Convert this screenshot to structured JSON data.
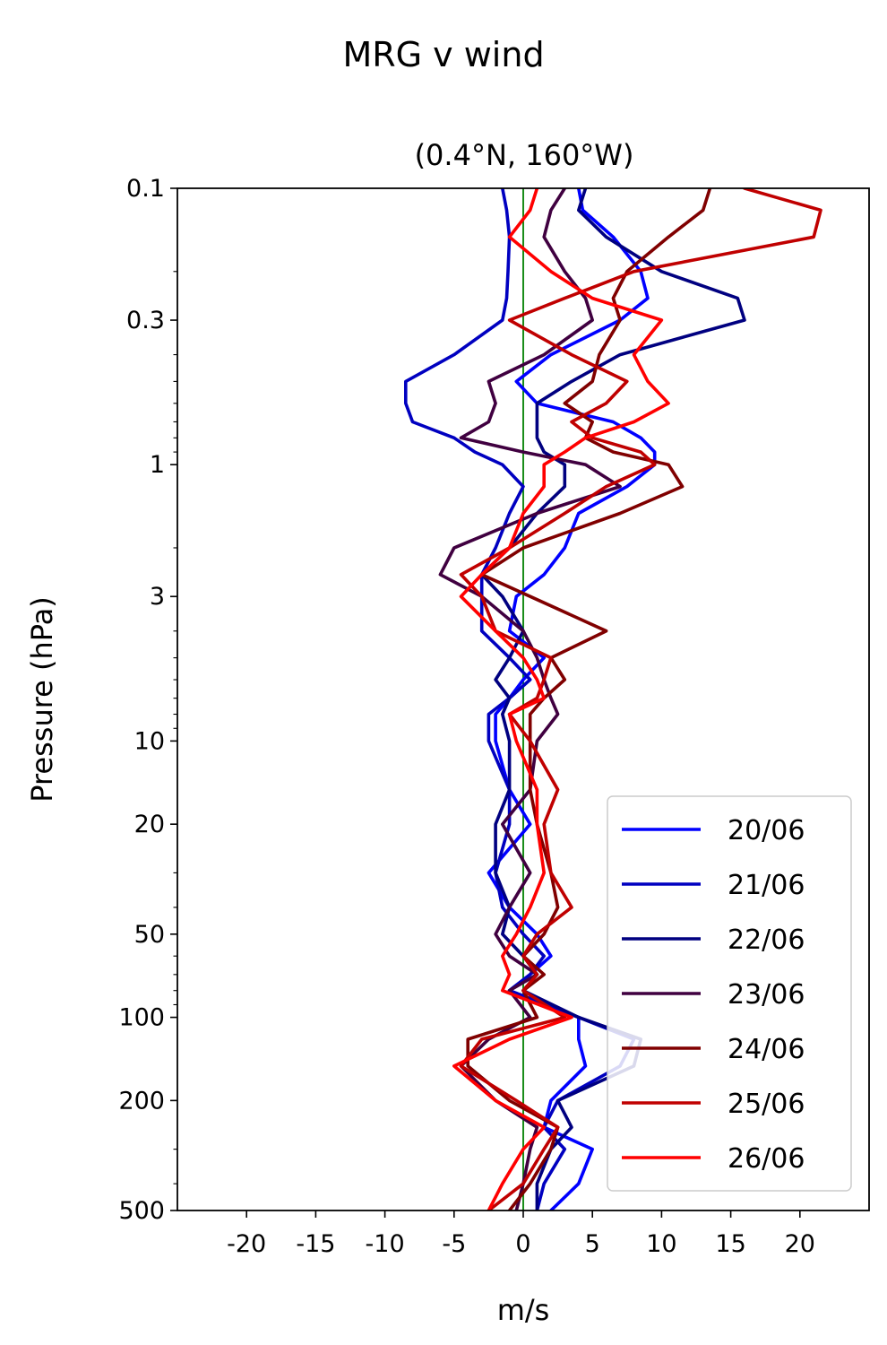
{
  "chart_data": {
    "type": "line",
    "title": "MRG v wind",
    "subtitle": "(0.4°N, 160°W)",
    "xlabel": "m/s",
    "ylabel": "Pressure (hPa)",
    "xlim": [
      -25,
      25
    ],
    "ylim": [
      500,
      0.1
    ],
    "yscale": "log",
    "x_ticks": [
      "-20",
      "-15",
      "-10",
      "-5",
      "0",
      "5",
      "10",
      "15",
      "20"
    ],
    "x_tick_values": [
      -20,
      -15,
      -10,
      -5,
      0,
      5,
      10,
      15,
      20
    ],
    "y_ticks": [
      "0.1",
      "0.3",
      "1",
      "3",
      "10",
      "20",
      "50",
      "100",
      "200",
      "500"
    ],
    "y_tick_values": [
      0.1,
      0.3,
      1,
      3,
      10,
      20,
      50,
      100,
      200,
      500
    ],
    "zero_line_color": "#008000",
    "legend_position": "lower-right",
    "pressure_levels": [
      0.1,
      0.12,
      0.15,
      0.2,
      0.25,
      0.3,
      0.4,
      0.5,
      0.6,
      0.7,
      0.8,
      0.9,
      1.0,
      1.2,
      1.5,
      2.0,
      2.5,
      3.0,
      4.0,
      5.0,
      6.0,
      7.0,
      8.0,
      10,
      15,
      20,
      30,
      40,
      50,
      60,
      70,
      80,
      100,
      120,
      150,
      200,
      250,
      300,
      400,
      500
    ],
    "series": [
      {
        "name": "20/06",
        "color": "#0000ff",
        "values": [
          4.0,
          4.3,
          6.5,
          8.5,
          9.0,
          7.0,
          2.0,
          -0.5,
          1.0,
          6.5,
          8.5,
          9.5,
          9.5,
          7.5,
          4.0,
          3.0,
          1.5,
          -0.5,
          -1.0,
          1.5,
          0.0,
          -1.0,
          -2.0,
          -2.0,
          -1.0,
          0.5,
          -2.5,
          -1.0,
          1.0,
          2.0,
          0.5,
          -1.0,
          4.0,
          4.0,
          4.5,
          2.0,
          1.5,
          5.0,
          4.0,
          2.0
        ]
      },
      {
        "name": "21/06",
        "color": "#0000c0",
        "values": [
          -1.5,
          -1.2,
          -1.0,
          -1.1,
          -1.2,
          -1.5,
          -5.0,
          -8.5,
          -8.5,
          -8.0,
          -5.0,
          -3.5,
          -1.5,
          0.0,
          -1.0,
          -2.0,
          -3.0,
          -3.0,
          -3.0,
          -1.0,
          0.5,
          -1.0,
          -2.5,
          -2.5,
          -1.0,
          -1.0,
          -2.0,
          -1.5,
          0.0,
          1.5,
          0.5,
          -1.0,
          4.0,
          8.0,
          7.0,
          2.5,
          1.5,
          3.0,
          1.5,
          1.0
        ]
      },
      {
        "name": "22/06",
        "color": "#000080",
        "values": [
          4.5,
          4.0,
          6.0,
          10.0,
          15.5,
          16.0,
          7.0,
          3.5,
          1.0,
          1.0,
          1.0,
          1.5,
          3.0,
          3.0,
          1.0,
          -1.0,
          -3.0,
          -1.5,
          0.0,
          -1.0,
          -2.0,
          -1.0,
          -1.5,
          -1.0,
          -1.0,
          -2.0,
          -2.0,
          -1.0,
          -1.5,
          0.0,
          1.0,
          0.0,
          4.0,
          8.5,
          8.0,
          2.5,
          3.5,
          2.0,
          1.0,
          1.0
        ]
      },
      {
        "name": "23/06",
        "color": "#400040",
        "values": [
          3.0,
          2.0,
          1.5,
          3.0,
          4.5,
          5.0,
          1.5,
          -2.5,
          -2.0,
          -2.5,
          -4.5,
          0.0,
          4.5,
          7.0,
          1.0,
          -5.0,
          -6.0,
          -3.0,
          0.0,
          1.0,
          1.5,
          2.0,
          2.5,
          1.0,
          0.5,
          -1.5,
          0.5,
          -1.0,
          -2.0,
          -1.0,
          1.0,
          -1.0,
          0.5,
          -2.5,
          -4.5,
          -2.0,
          1.0,
          0.5,
          0.0,
          -0.5
        ]
      },
      {
        "name": "24/06",
        "color": "#800000",
        "values": [
          13.5,
          13.0,
          10.5,
          7.5,
          6.5,
          7.0,
          5.5,
          5.0,
          3.0,
          5.0,
          4.5,
          6.5,
          10.5,
          11.5,
          7.0,
          0.0,
          -3.0,
          0.5,
          6.0,
          2.0,
          3.0,
          1.5,
          0.5,
          0.5,
          0.5,
          1.0,
          2.0,
          2.5,
          1.5,
          0.0,
          1.5,
          0.0,
          1.0,
          -4.0,
          -4.0,
          -1.0,
          2.5,
          2.0,
          0.5,
          -1.0
        ]
      },
      {
        "name": "25/06",
        "color": "#c00000",
        "values": [
          16.0,
          21.5,
          21.0,
          8.0,
          3.0,
          -1.0,
          3.5,
          7.5,
          6.0,
          3.5,
          5.0,
          8.5,
          9.5,
          6.0,
          3.0,
          -1.0,
          -4.5,
          -3.0,
          -2.0,
          2.0,
          1.5,
          1.0,
          -1.0,
          0.5,
          2.5,
          1.5,
          2.0,
          3.5,
          1.0,
          0.0,
          1.0,
          0.0,
          3.0,
          -3.0,
          -4.5,
          -0.5,
          2.5,
          1.5,
          0.0,
          -2.5
        ]
      },
      {
        "name": "26/06",
        "color": "#ff0000",
        "values": [
          1.0,
          0.5,
          -1.0,
          2.0,
          5.0,
          10.0,
          8.0,
          9.0,
          10.5,
          8.0,
          4.5,
          3.0,
          1.5,
          1.5,
          0.0,
          -1.0,
          -3.0,
          -4.5,
          -2.0,
          0.0,
          1.0,
          1.5,
          -1.0,
          -0.5,
          1.0,
          1.0,
          1.5,
          0.5,
          -0.5,
          -1.5,
          -1.0,
          -1.5,
          3.5,
          -1.0,
          -5.0,
          -2.0,
          1.5,
          0.0,
          -1.5,
          -2.5
        ]
      }
    ]
  }
}
